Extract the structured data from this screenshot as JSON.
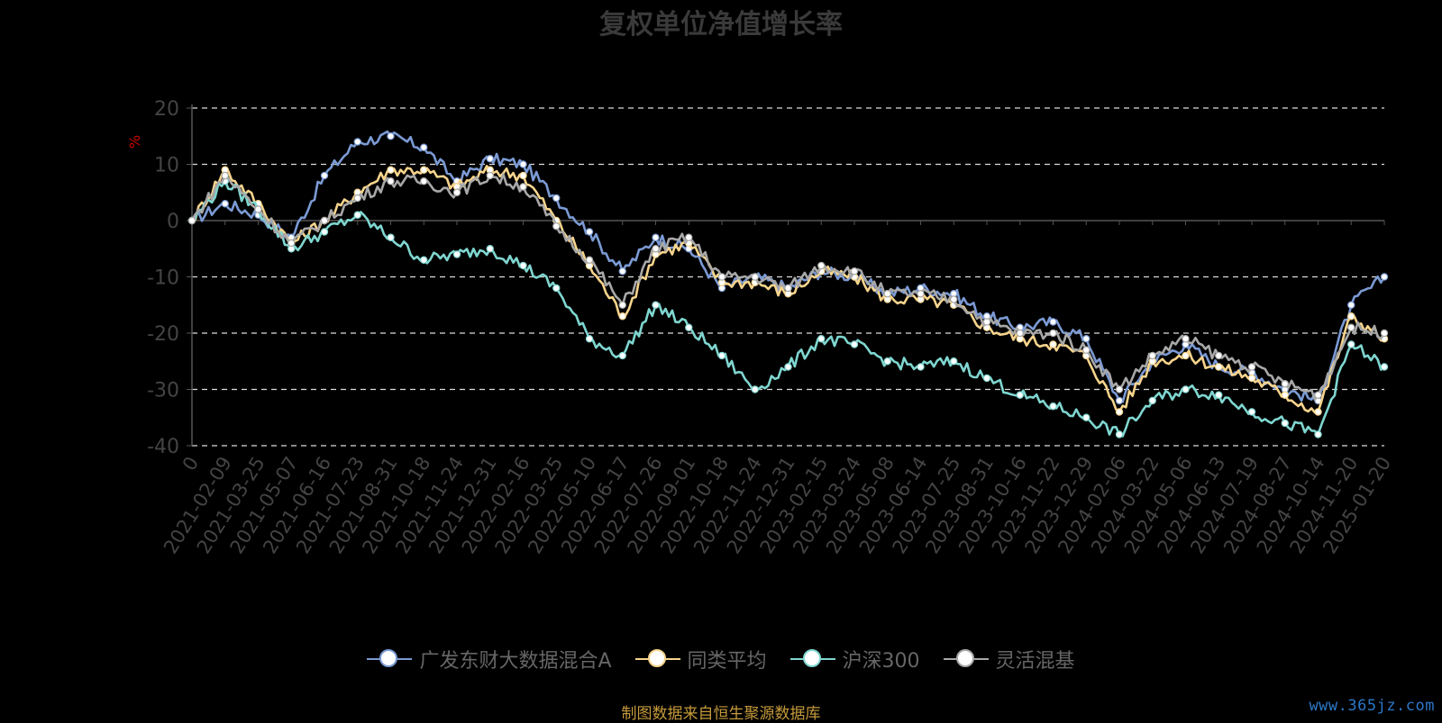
{
  "watermark": "www.365jz.com",
  "source_note": "制图数据来自恒生聚源数据库",
  "chart_data": {
    "type": "line",
    "title": "复权单位净值增长率",
    "ylabel": "%",
    "ylim": [
      -40,
      20
    ],
    "yticks": [
      20,
      10,
      0,
      -10,
      -20,
      -30,
      -40
    ],
    "grid": true,
    "legend_position": "bottom",
    "x_tick_labels": [
      "0",
      "2021-02-09",
      "2021-03-25",
      "2021-05-07",
      "2021-06-16",
      "2021-07-23",
      "2021-08-31",
      "2021-10-18",
      "2021-11-24",
      "2021-12-31",
      "2022-02-16",
      "2022-03-25",
      "2022-05-10",
      "2022-06-17",
      "2022-07-26",
      "2022-09-01",
      "2022-10-18",
      "2022-11-24",
      "2022-12-31",
      "2023-02-15",
      "2023-03-24",
      "2023-05-08",
      "2023-06-14",
      "2023-07-25",
      "2023-08-31",
      "2023-10-16",
      "2023-11-22",
      "2023-12-29",
      "2024-02-06",
      "2024-03-22",
      "2024-05-06",
      "2024-06-13",
      "2024-07-19",
      "2024-08-27",
      "2024-10-14",
      "2024-11-20",
      "2025-01-20"
    ],
    "x_positions": [
      0,
      1,
      2,
      3,
      4,
      5,
      6,
      7,
      8,
      9,
      10,
      11,
      12,
      13,
      14,
      15,
      16,
      17,
      18,
      19,
      20,
      21,
      22,
      23,
      24,
      25,
      26,
      27,
      28,
      29,
      30,
      31,
      32,
      33,
      34,
      35,
      36
    ],
    "series": [
      {
        "name": "广发东财大数据混合A",
        "color": "#7b9ad4",
        "values": [
          0,
          3,
          1,
          -3,
          8,
          14,
          15,
          13,
          7,
          11,
          10,
          4,
          -2,
          -9,
          -3,
          -5,
          -12,
          -10,
          -12,
          -9,
          -10,
          -13,
          -12,
          -13,
          -17,
          -19,
          -18,
          -21,
          -32,
          -25,
          -22,
          -26,
          -27,
          -30,
          -32,
          -15,
          -10
        ]
      },
      {
        "name": "同类平均",
        "color": "#f6d48c",
        "values": [
          0,
          9,
          3,
          -4,
          0,
          5,
          9,
          9,
          6,
          9,
          8,
          0,
          -8,
          -17,
          -6,
          -4,
          -11,
          -11,
          -13,
          -9,
          -10,
          -14,
          -14,
          -15,
          -19,
          -21,
          -22,
          -24,
          -34,
          -25,
          -24,
          -26,
          -28,
          -31,
          -34,
          -17,
          -21
        ]
      },
      {
        "name": "沪深300",
        "color": "#7fd6d0",
        "values": [
          0,
          7,
          2,
          -5,
          -2,
          1,
          -3,
          -7,
          -6,
          -5,
          -8,
          -12,
          -21,
          -24,
          -15,
          -19,
          -24,
          -30,
          -26,
          -21,
          -22,
          -25,
          -26,
          -25,
          -28,
          -31,
          -33,
          -35,
          -38,
          -32,
          -30,
          -31,
          -34,
          -36,
          -38,
          -22,
          -26
        ]
      },
      {
        "name": "灵活混基",
        "color": "#a8a8a8",
        "values": [
          0,
          8,
          2,
          -4,
          0,
          4,
          7,
          7,
          5,
          8,
          6,
          -1,
          -7,
          -15,
          -5,
          -3,
          -10,
          -10,
          -12,
          -8,
          -9,
          -13,
          -13,
          -14,
          -18,
          -20,
          -20,
          -23,
          -30,
          -24,
          -21,
          -24,
          -26,
          -29,
          -31,
          -19,
          -20
        ]
      }
    ]
  }
}
